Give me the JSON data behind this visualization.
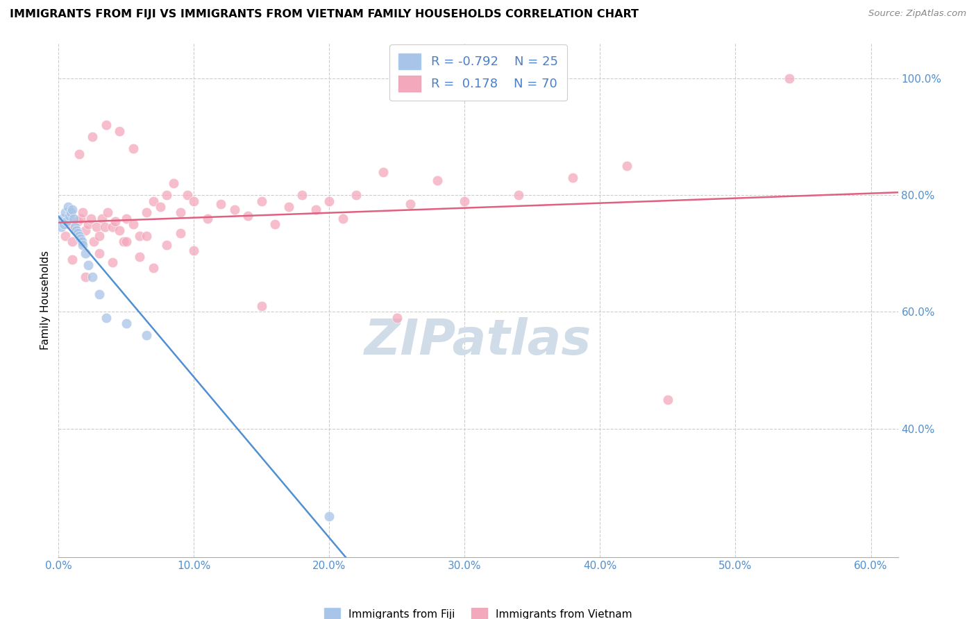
{
  "title": "IMMIGRANTS FROM FIJI VS IMMIGRANTS FROM VIETNAM FAMILY HOUSEHOLDS CORRELATION CHART",
  "source": "Source: ZipAtlas.com",
  "ylabel": "Family Households",
  "xlim": [
    0.0,
    0.62
  ],
  "ylim": [
    0.18,
    1.06
  ],
  "x_tick_labels": [
    "0.0%",
    "10.0%",
    "20.0%",
    "30.0%",
    "40.0%",
    "50.0%",
    "60.0%"
  ],
  "y_tick_labels": [
    "40.0%",
    "60.0%",
    "80.0%",
    "100.0%"
  ],
  "y_tick_vals": [
    0.4,
    0.6,
    0.8,
    1.0
  ],
  "x_tick_vals": [
    0.0,
    0.1,
    0.2,
    0.3,
    0.4,
    0.5,
    0.6
  ],
  "fiji_color": "#a8c4e8",
  "vietnam_color": "#f4a8bc",
  "fiji_line_color": "#5090d0",
  "vietnam_line_color": "#e06080",
  "background_color": "#ffffff",
  "grid_color": "#cccccc",
  "watermark_color": "#d0dce8",
  "fiji_scatter_x": [
    0.002,
    0.003,
    0.004,
    0.005,
    0.006,
    0.007,
    0.008,
    0.009,
    0.01,
    0.011,
    0.012,
    0.013,
    0.014,
    0.015,
    0.016,
    0.017,
    0.018,
    0.02,
    0.022,
    0.025,
    0.03,
    0.035,
    0.05,
    0.065,
    0.2
  ],
  "fiji_scatter_y": [
    0.745,
    0.76,
    0.75,
    0.77,
    0.755,
    0.78,
    0.765,
    0.77,
    0.775,
    0.76,
    0.745,
    0.74,
    0.735,
    0.73,
    0.725,
    0.72,
    0.715,
    0.7,
    0.68,
    0.66,
    0.63,
    0.59,
    0.58,
    0.56,
    0.25
  ],
  "vietnam_scatter_x": [
    0.005,
    0.008,
    0.01,
    0.012,
    0.014,
    0.016,
    0.018,
    0.02,
    0.022,
    0.024,
    0.026,
    0.028,
    0.03,
    0.032,
    0.034,
    0.036,
    0.04,
    0.042,
    0.045,
    0.048,
    0.05,
    0.055,
    0.06,
    0.065,
    0.07,
    0.075,
    0.08,
    0.085,
    0.09,
    0.095,
    0.1,
    0.11,
    0.12,
    0.13,
    0.14,
    0.15,
    0.16,
    0.17,
    0.18,
    0.19,
    0.2,
    0.21,
    0.22,
    0.24,
    0.26,
    0.28,
    0.3,
    0.34,
    0.38,
    0.42,
    0.01,
    0.02,
    0.03,
    0.04,
    0.05,
    0.06,
    0.07,
    0.08,
    0.09,
    0.1,
    0.015,
    0.025,
    0.035,
    0.045,
    0.055,
    0.065,
    0.15,
    0.25,
    0.45,
    0.54
  ],
  "vietnam_scatter_y": [
    0.73,
    0.75,
    0.72,
    0.74,
    0.755,
    0.76,
    0.77,
    0.74,
    0.75,
    0.76,
    0.72,
    0.745,
    0.73,
    0.76,
    0.745,
    0.77,
    0.745,
    0.755,
    0.74,
    0.72,
    0.76,
    0.75,
    0.73,
    0.77,
    0.79,
    0.78,
    0.8,
    0.82,
    0.77,
    0.8,
    0.79,
    0.76,
    0.785,
    0.775,
    0.765,
    0.79,
    0.75,
    0.78,
    0.8,
    0.775,
    0.79,
    0.76,
    0.8,
    0.84,
    0.785,
    0.825,
    0.79,
    0.8,
    0.83,
    0.85,
    0.69,
    0.66,
    0.7,
    0.685,
    0.72,
    0.695,
    0.675,
    0.715,
    0.735,
    0.705,
    0.87,
    0.9,
    0.92,
    0.91,
    0.88,
    0.73,
    0.61,
    0.59,
    0.45,
    1.0
  ]
}
